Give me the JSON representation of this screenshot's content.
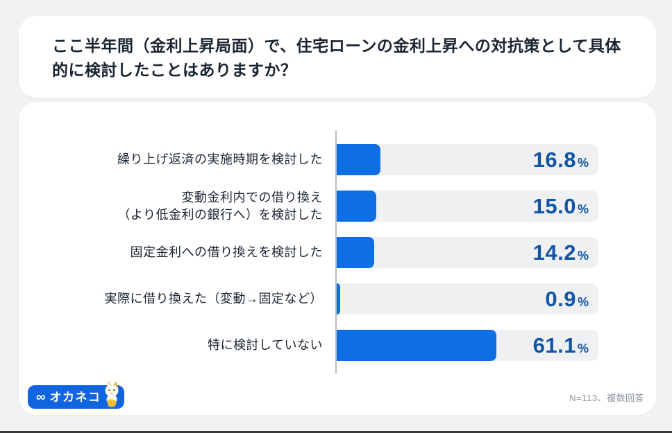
{
  "page": {
    "title": "ここ半年間（金利上昇局面）で、住宅ローンの金利上昇への対抗策として具体的に検討したことはありますか？",
    "footnote": "N=113、複数回答"
  },
  "logo": {
    "infinity_symbol": "∞",
    "brand": "オカネコ"
  },
  "colors": {
    "page_background": "#f0f2f3",
    "card_background": "#ffffff",
    "bar_blue": "#0d6fe3",
    "value_text_blue": "#1254a5",
    "track_gray": "#eef0f2",
    "axis_gray": "#b9bdc2",
    "title_text": "#1a2430",
    "footnote_gray": "#8e959c",
    "logo_blue": "#1065de"
  },
  "chart_data": {
    "type": "bar",
    "orientation": "horizontal",
    "title": "ここ半年間（金利上昇局面）で、住宅ローンの金利上昇への対抗策として具体的に検討したことはありますか？",
    "categories": [
      "繰り上げ返済の実施時期を検討した",
      "変動金利内での借り換え\n（より低金利の銀行へ）を検討した",
      "固定金利への借り換えを検討した",
      "実際に借り換えた（変動→固定など）",
      "特に検討していない"
    ],
    "values": [
      16.8,
      15.0,
      14.2,
      0.9,
      61.1
    ],
    "value_labels": [
      "16.8",
      "15.0",
      "14.2",
      "0.9",
      "61.1"
    ],
    "unit": "%",
    "xlim": [
      0,
      100
    ],
    "grid": false,
    "legend": "none",
    "sample_note": "N=113、複数回答"
  }
}
